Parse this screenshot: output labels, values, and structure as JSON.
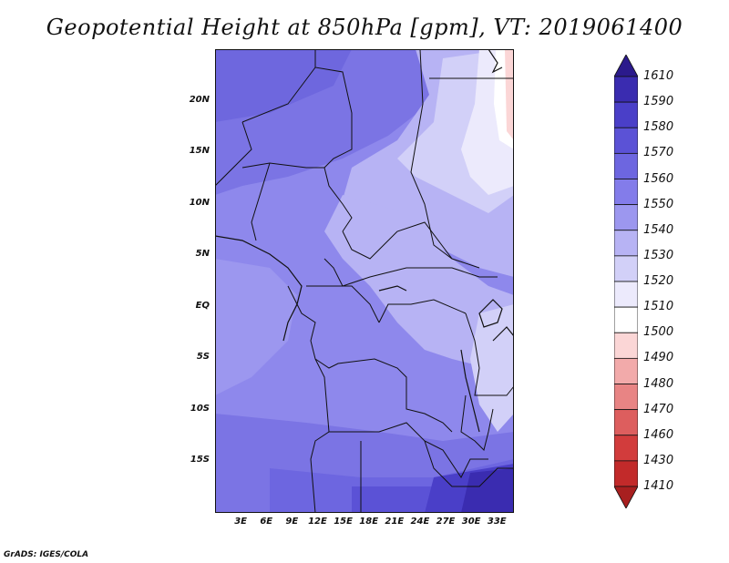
{
  "title": "Geopotential Height at 850hPa [gpm], VT: 2019061400",
  "footer": "GrADS: IGES/COLA",
  "map": {
    "lat_labels": [
      "20N",
      "15N",
      "10N",
      "5N",
      "EQ",
      "5S",
      "10S",
      "15S"
    ],
    "lat_values": [
      20,
      15,
      10,
      5,
      0,
      -5,
      -10,
      -15
    ],
    "lon_labels": [
      "3E",
      "6E",
      "9E",
      "12E",
      "15E",
      "18E",
      "21E",
      "24E",
      "27E",
      "30E",
      "33E"
    ],
    "lon_values": [
      3,
      6,
      9,
      12,
      15,
      18,
      21,
      24,
      27,
      30,
      33
    ],
    "lon_range": [
      0,
      35
    ],
    "lat_range": [
      -20,
      25
    ]
  },
  "colorbar": {
    "labels": [
      "1610",
      "1590",
      "1580",
      "1570",
      "1560",
      "1550",
      "1540",
      "1530",
      "1520",
      "1510",
      "1500",
      "1490",
      "1480",
      "1470",
      "1460",
      "1430",
      "1410"
    ],
    "colors": [
      "#2b1a8c",
      "#3a2cb0",
      "#4a3fc8",
      "#5b52d6",
      "#6d66e0",
      "#837cea",
      "#9c97ef",
      "#b7b3f4",
      "#d2d0f8",
      "#eceafc",
      "#ffffff",
      "#fbd6d6",
      "#f2aaaa",
      "#e88484",
      "#dd5e5e",
      "#d23c3c",
      "#c22a2a",
      "#a81f1f"
    ]
  }
}
